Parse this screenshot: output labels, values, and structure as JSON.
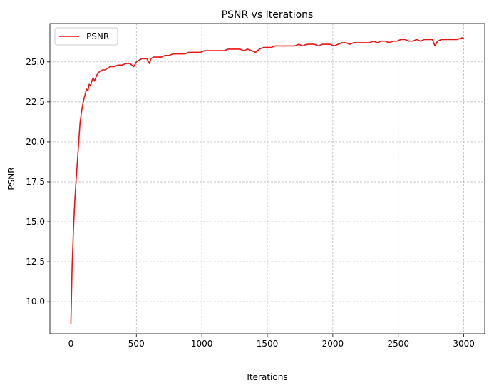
{
  "chart_data": {
    "type": "line",
    "title": "PSNR vs Iterations",
    "xlabel": "Iterations",
    "ylabel": "PSNR",
    "xlim": [
      -160,
      3160
    ],
    "ylim": [
      8.0,
      27.4
    ],
    "xticks": [
      0,
      500,
      1000,
      1500,
      2000,
      2500,
      3000
    ],
    "xtick_labels": [
      "0",
      "500",
      "1000",
      "1500",
      "2000",
      "2500",
      "3000"
    ],
    "yticks": [
      10.0,
      12.5,
      15.0,
      17.5,
      20.0,
      22.5,
      25.0
    ],
    "ytick_labels": [
      "10.0",
      "12.5",
      "15.0",
      "17.5",
      "20.0",
      "22.5",
      "25.0"
    ],
    "grid": true,
    "legend_position": "top-left",
    "series": [
      {
        "name": "PSNR",
        "color": "#ee1111",
        "x": [
          0,
          10,
          20,
          30,
          40,
          50,
          60,
          70,
          80,
          90,
          100,
          110,
          120,
          130,
          140,
          150,
          160,
          170,
          180,
          190,
          200,
          220,
          240,
          260,
          280,
          300,
          330,
          360,
          390,
          420,
          450,
          480,
          500,
          520,
          540,
          560,
          580,
          600,
          610,
          630,
          660,
          690,
          720,
          750,
          780,
          810,
          840,
          870,
          900,
          930,
          960,
          990,
          1020,
          1050,
          1080,
          1110,
          1140,
          1170,
          1200,
          1230,
          1260,
          1290,
          1320,
          1350,
          1380,
          1410,
          1440,
          1470,
          1500,
          1530,
          1560,
          1590,
          1620,
          1650,
          1680,
          1710,
          1740,
          1770,
          1800,
          1830,
          1860,
          1890,
          1920,
          1950,
          1980,
          2010,
          2040,
          2070,
          2100,
          2130,
          2160,
          2190,
          2220,
          2250,
          2280,
          2310,
          2340,
          2370,
          2400,
          2430,
          2460,
          2490,
          2520,
          2550,
          2580,
          2610,
          2640,
          2670,
          2700,
          2730,
          2760,
          2780,
          2800,
          2830,
          2860,
          2890,
          2920,
          2950,
          2980,
          3000
        ],
        "values": [
          8.6,
          12.3,
          14.6,
          16.3,
          17.6,
          18.8,
          20.0,
          21.2,
          21.8,
          22.3,
          22.7,
          23.0,
          23.3,
          23.2,
          23.6,
          23.5,
          23.8,
          24.0,
          23.8,
          24.0,
          24.2,
          24.4,
          24.5,
          24.5,
          24.6,
          24.7,
          24.7,
          24.8,
          24.8,
          24.9,
          24.9,
          24.7,
          25.0,
          25.1,
          25.2,
          25.2,
          25.2,
          24.9,
          25.2,
          25.3,
          25.3,
          25.3,
          25.4,
          25.4,
          25.5,
          25.5,
          25.5,
          25.5,
          25.6,
          25.6,
          25.6,
          25.6,
          25.7,
          25.7,
          25.7,
          25.7,
          25.7,
          25.7,
          25.8,
          25.8,
          25.8,
          25.8,
          25.7,
          25.8,
          25.7,
          25.6,
          25.8,
          25.9,
          25.9,
          25.9,
          26.0,
          26.0,
          26.0,
          26.0,
          26.0,
          26.0,
          26.1,
          26.0,
          26.1,
          26.1,
          26.1,
          26.0,
          26.1,
          26.1,
          26.1,
          26.0,
          26.1,
          26.2,
          26.2,
          26.1,
          26.2,
          26.2,
          26.2,
          26.2,
          26.2,
          26.3,
          26.2,
          26.3,
          26.3,
          26.2,
          26.3,
          26.3,
          26.4,
          26.4,
          26.3,
          26.3,
          26.4,
          26.3,
          26.4,
          26.4,
          26.4,
          26.0,
          26.3,
          26.4,
          26.4,
          26.4,
          26.4,
          26.4,
          26.5,
          26.5
        ]
      }
    ]
  }
}
